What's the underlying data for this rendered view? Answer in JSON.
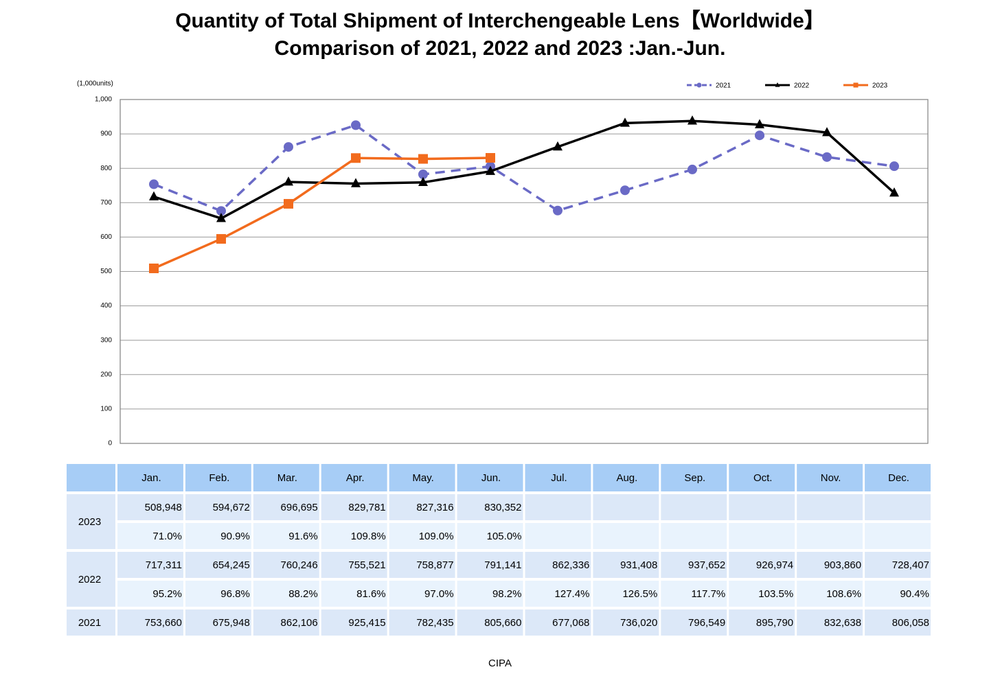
{
  "chart_data": {
    "type": "line",
    "title": "Quantity of Total Shipment of Interchengeable Lens【Worldwide】",
    "subtitle": "Comparison of 2021, 2022 and 2023 :Jan.-Jun.",
    "ylabel": "(1,000units)",
    "categories": [
      "Jan.",
      "Feb.",
      "Mar.",
      "Apr.",
      "May.",
      "Jun.",
      "Jul.",
      "Aug.",
      "Sep.",
      "Oct.",
      "Nov.",
      "Dec."
    ],
    "series": [
      {
        "name": "2021",
        "color": "#6a6ac6",
        "dash": true,
        "marker": "circle",
        "values": [
          753.66,
          675.948,
          862.106,
          925.415,
          782.435,
          805.66,
          677.068,
          736.02,
          796.549,
          895.79,
          832.638,
          806.058
        ]
      },
      {
        "name": "2022",
        "color": "#000000",
        "dash": false,
        "marker": "triangle",
        "values": [
          717.311,
          654.245,
          760.246,
          755.521,
          758.877,
          791.141,
          862.336,
          931.408,
          937.652,
          926.974,
          903.86,
          728.407
        ]
      },
      {
        "name": "2023",
        "color": "#f26b1d",
        "dash": false,
        "marker": "square",
        "values": [
          508.948,
          594.672,
          696.695,
          829.781,
          827.316,
          830.352,
          null,
          null,
          null,
          null,
          null,
          null
        ]
      }
    ],
    "ylim": [
      0,
      1000
    ],
    "yticks": [
      0,
      100,
      200,
      300,
      400,
      500,
      600,
      700,
      800,
      900,
      {
        "value": 1000,
        "label": "1,000"
      }
    ],
    "grid": true,
    "legend": "top-right"
  },
  "table": {
    "rows": [
      {
        "values": [
          "508,948",
          "594,672",
          "696,695",
          "829,781",
          "827,316",
          "830,352"
        ],
        "ratios": [
          "71.0%",
          "90.9%",
          "91.6%",
          "109.8%",
          "109.0%",
          "105.0%"
        ]
      },
      {
        "values": [
          "717,311",
          "654,245",
          "760,246",
          "755,521",
          "758,877",
          "791,141",
          "862,336",
          "931,408",
          "937,652",
          "926,974",
          "903,860",
          "728,407"
        ],
        "ratios": [
          "95.2%",
          "96.8%",
          "88.2%",
          "81.6%",
          "97.0%",
          "98.2%",
          "127.4%",
          "126.5%",
          "117.7%",
          "103.5%",
          "108.6%",
          "90.4%"
        ]
      },
      {
        "values": [
          "753,660",
          "675,948",
          "862,106",
          "925,415",
          "782,435",
          "805,660",
          "677,068",
          "736,020",
          "796,549",
          "895,790",
          "832,638",
          "806,058"
        ]
      }
    ]
  },
  "source": "CIPA"
}
